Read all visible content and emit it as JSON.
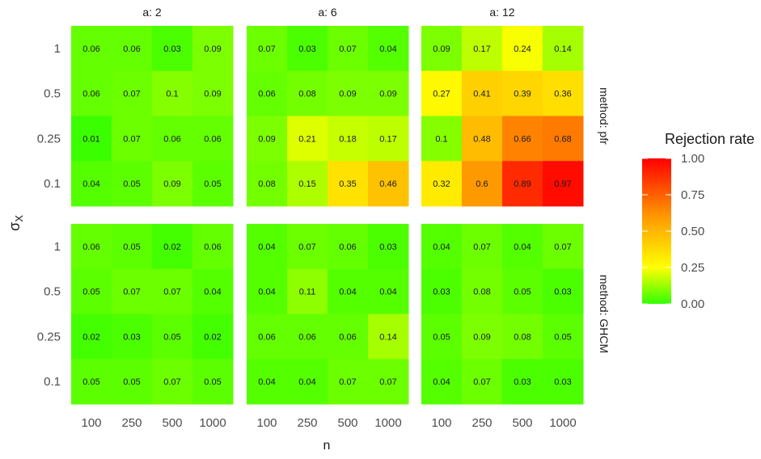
{
  "chart_data": {
    "type": "heatmap",
    "xlabel": "n",
    "ylabel": "σX",
    "x_categories": [
      "100",
      "250",
      "500",
      "1000"
    ],
    "y_categories": [
      "1",
      "0.5",
      "0.25",
      "0.1"
    ],
    "columns": [
      "a: 2",
      "a: 6",
      "a: 12"
    ],
    "rows": [
      "method: pfr",
      "method: GHCM"
    ],
    "legend": {
      "title": "Rejection rate",
      "range": [
        0,
        1
      ],
      "ticks": [
        "1.00",
        "0.75",
        "0.50",
        "0.25",
        "0.00"
      ],
      "tick_values": [
        1,
        0.75,
        0.5,
        0.25,
        0
      ],
      "colors": [
        "#33ff00",
        "#ffff00",
        "#ff9900",
        "#ff0000"
      ],
      "placement": "right"
    },
    "grid": true,
    "panels": [
      {
        "row": "method: pfr",
        "column": "a: 2",
        "values": [
          [
            0.06,
            0.06,
            0.03,
            0.09
          ],
          [
            0.06,
            0.07,
            0.1,
            0.09
          ],
          [
            0.01,
            0.07,
            0.06,
            0.06
          ],
          [
            0.04,
            0.05,
            0.09,
            0.05
          ]
        ]
      },
      {
        "row": "method: pfr",
        "column": "a: 6",
        "values": [
          [
            0.07,
            0.03,
            0.07,
            0.04
          ],
          [
            0.06,
            0.08,
            0.09,
            0.09
          ],
          [
            0.09,
            0.21,
            0.18,
            0.17
          ],
          [
            0.08,
            0.15,
            0.35,
            0.46
          ]
        ]
      },
      {
        "row": "method: pfr",
        "column": "a: 12",
        "values": [
          [
            0.09,
            0.17,
            0.24,
            0.14
          ],
          [
            0.27,
            0.41,
            0.39,
            0.36
          ],
          [
            0.1,
            0.48,
            0.66,
            0.68
          ],
          [
            0.32,
            0.6,
            0.89,
            0.97
          ]
        ]
      },
      {
        "row": "method: GHCM",
        "column": "a: 2",
        "values": [
          [
            0.06,
            0.05,
            0.02,
            0.06
          ],
          [
            0.05,
            0.07,
            0.07,
            0.04
          ],
          [
            0.02,
            0.03,
            0.05,
            0.02
          ],
          [
            0.05,
            0.05,
            0.07,
            0.05
          ]
        ]
      },
      {
        "row": "method: GHCM",
        "column": "a: 6",
        "values": [
          [
            0.04,
            0.07,
            0.06,
            0.03
          ],
          [
            0.04,
            0.11,
            0.04,
            0.04
          ],
          [
            0.06,
            0.06,
            0.06,
            0.14
          ],
          [
            0.04,
            0.04,
            0.07,
            0.07
          ]
        ]
      },
      {
        "row": "method: GHCM",
        "column": "a: 12",
        "values": [
          [
            0.04,
            0.07,
            0.04,
            0.07
          ],
          [
            0.03,
            0.08,
            0.05,
            0.03
          ],
          [
            0.05,
            0.09,
            0.08,
            0.05
          ],
          [
            0.04,
            0.07,
            0.03,
            0.03
          ]
        ]
      }
    ]
  }
}
